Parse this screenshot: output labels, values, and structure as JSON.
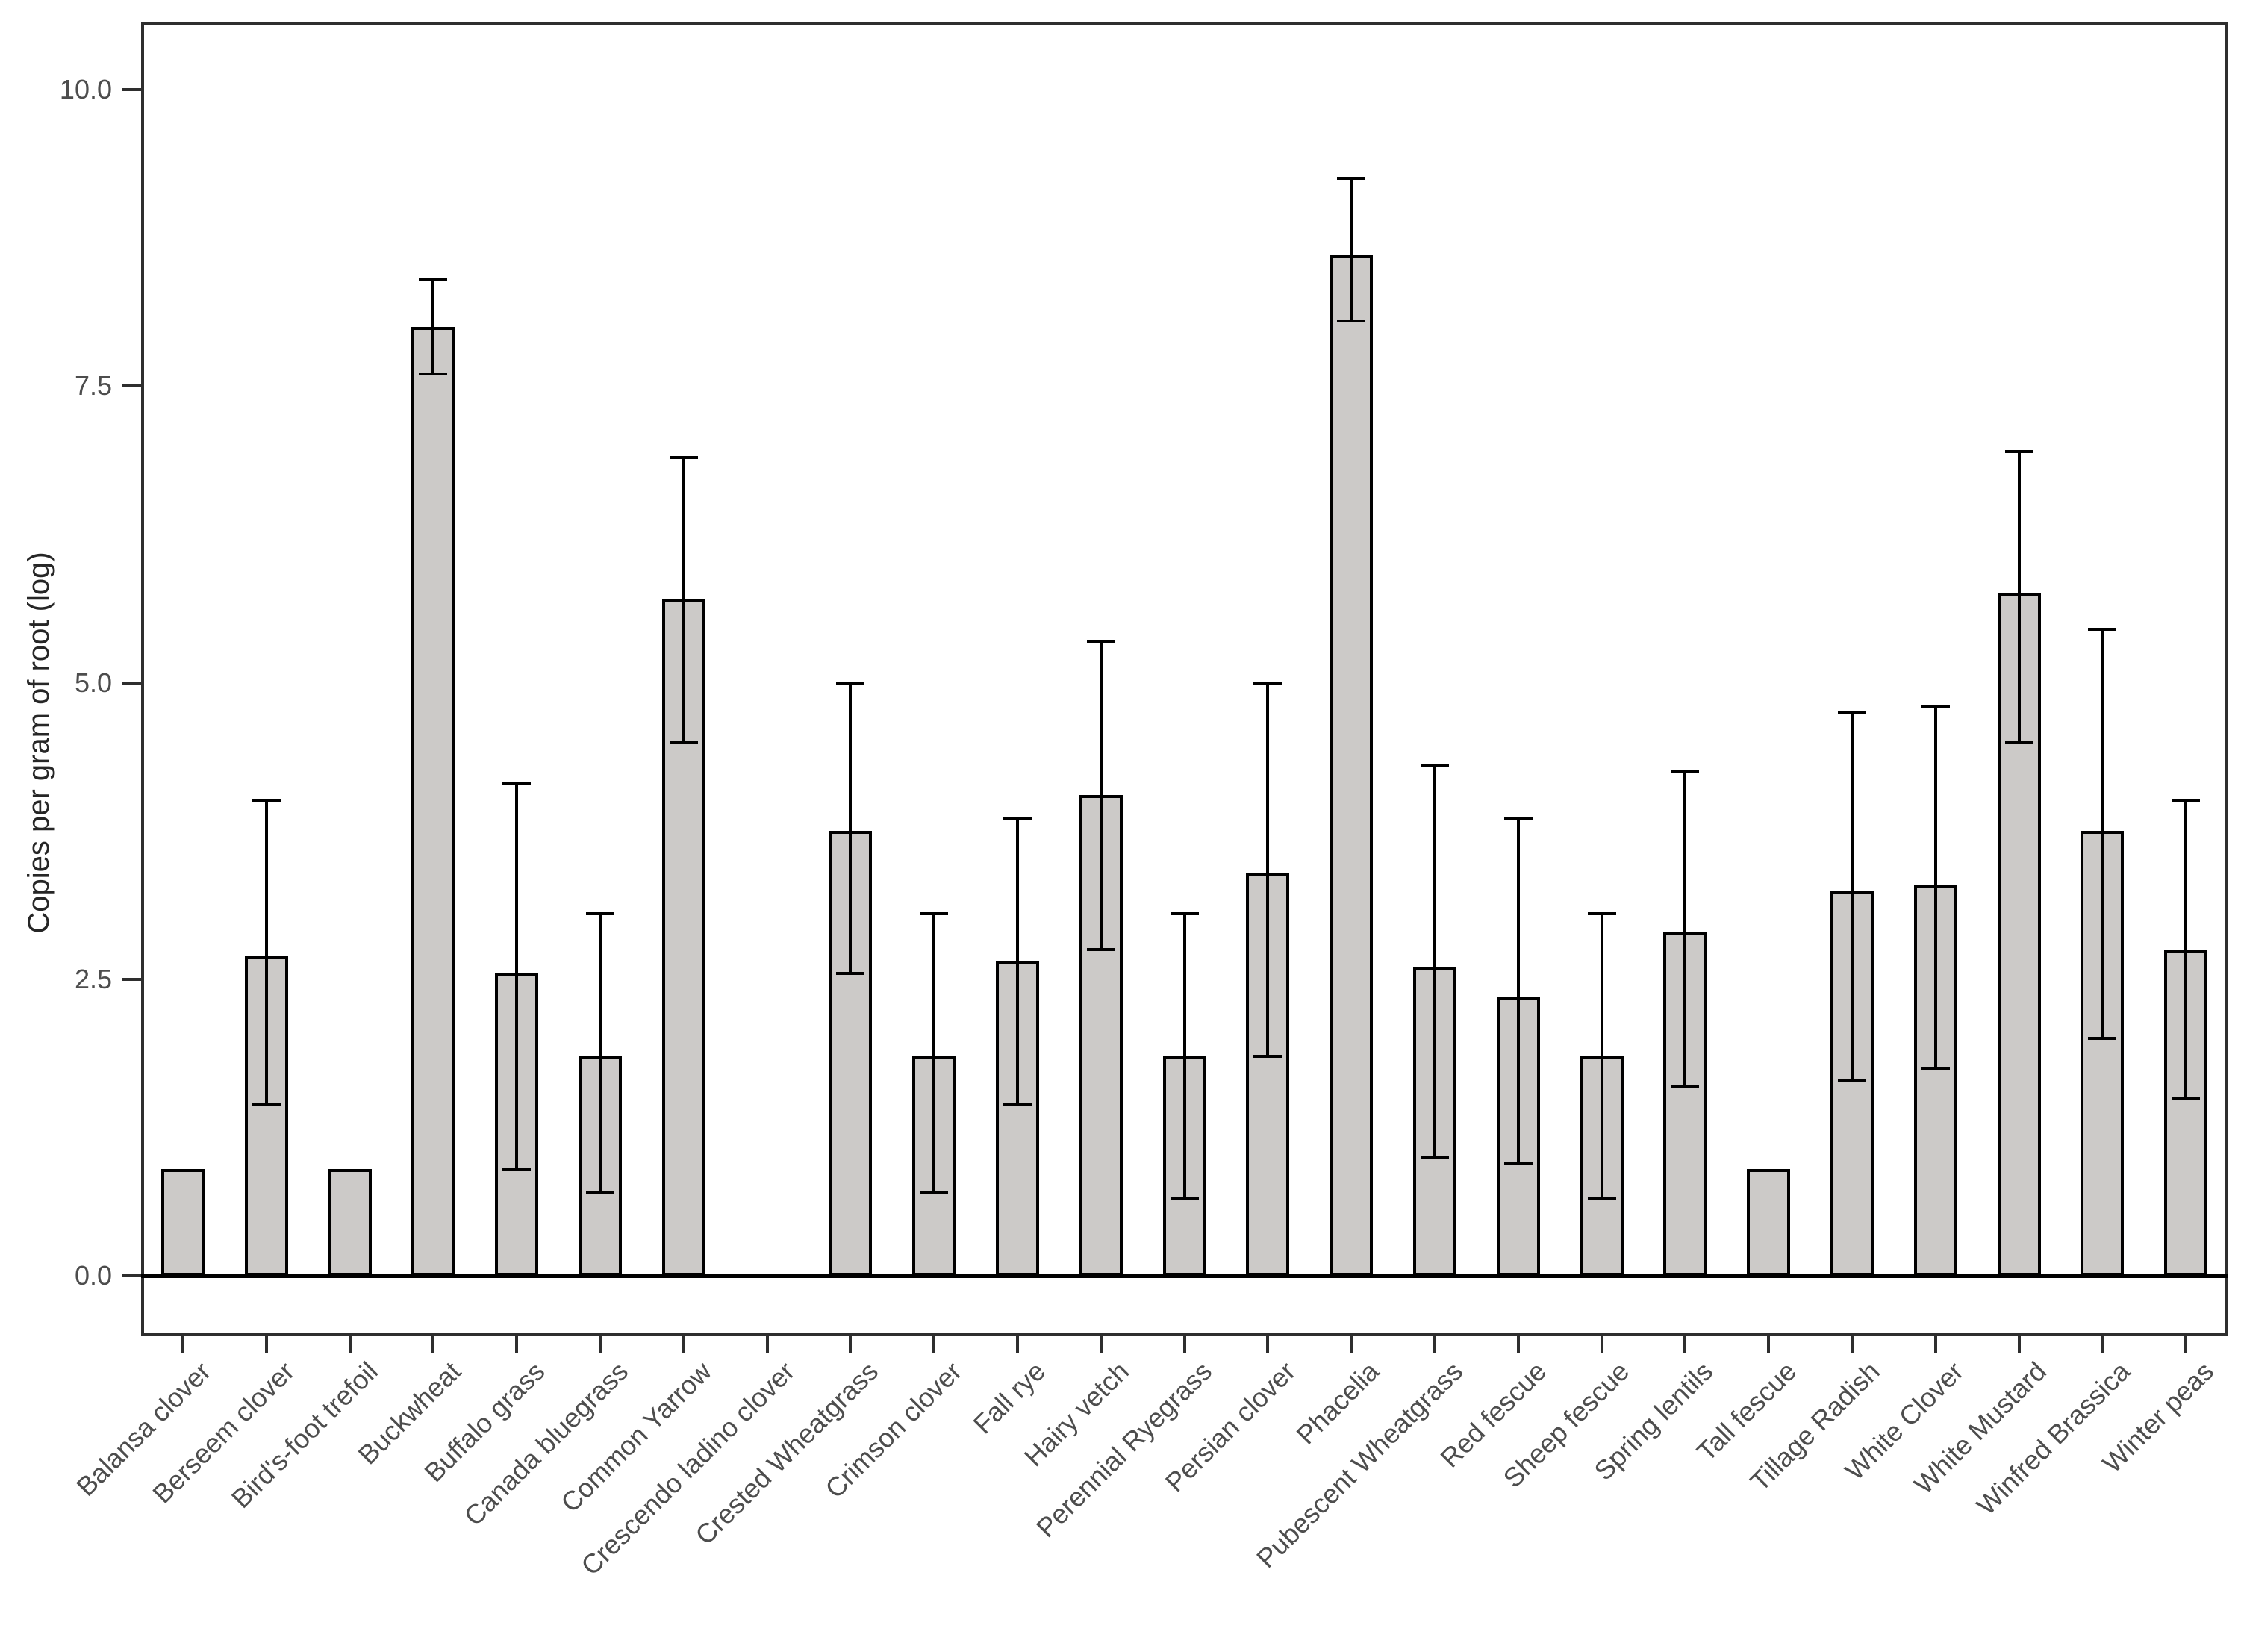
{
  "chart_data": {
    "type": "bar",
    "title": "",
    "xlabel": "",
    "ylabel": "Copies per gram of root (log)",
    "ylim": [
      -0.5,
      10.55
    ],
    "yticks": [
      0.0,
      2.5,
      5.0,
      7.5,
      10.0
    ],
    "ytick_labels": [
      "0.0",
      "2.5",
      "5.0",
      "7.5",
      "10.0"
    ],
    "grid": false,
    "legend_position": "none",
    "categories": [
      "Balansa clover",
      "Berseem clover",
      "Bird's-foot trefoil",
      "Buckwheat",
      "Buffalo grass",
      "Canada bluegrass",
      "Common Yarrow",
      "Crescendo ladino clover",
      "Crested Wheatgrass",
      "Crimson clover",
      "Fall rye",
      "Hairy vetch",
      "Perennial Ryegrass",
      "Persian clover",
      "Phacelia",
      "Pubescent Wheatgrass",
      "Red fescue",
      "Sheep fescue",
      "Spring lentils",
      "Tall fescue",
      "Tillage Radish",
      "White Clover",
      "White Mustard",
      "Winfred Brassica",
      "Winter peas"
    ],
    "values": [
      0.9,
      2.7,
      0.9,
      8.0,
      2.55,
      1.85,
      5.7,
      0,
      3.75,
      1.85,
      2.65,
      4.05,
      1.85,
      3.4,
      8.6,
      2.6,
      2.35,
      1.85,
      2.9,
      0.9,
      3.25,
      3.3,
      5.75,
      3.75,
      2.75
    ],
    "error_low": [
      null,
      1.45,
      null,
      7.6,
      0.9,
      0.7,
      4.5,
      null,
      2.55,
      0.7,
      1.45,
      2.75,
      0.65,
      1.85,
      8.05,
      1.0,
      0.95,
      0.65,
      1.6,
      null,
      1.65,
      1.75,
      4.5,
      2.0,
      1.5
    ],
    "error_high": [
      null,
      4.0,
      null,
      8.4,
      4.15,
      3.05,
      6.9,
      null,
      5.0,
      3.05,
      3.85,
      5.35,
      3.05,
      5.0,
      9.25,
      4.3,
      3.85,
      3.05,
      4.25,
      null,
      4.75,
      4.8,
      6.95,
      5.45,
      4.0
    ],
    "colors": {
      "bar_fill": "#cccac8",
      "bar_border": "#000000",
      "error_bar": "#000000",
      "axis_line": "#2e2e2e",
      "tick_text": "#4d4d4d",
      "title_text": "#262626",
      "background": "#ffffff"
    }
  }
}
